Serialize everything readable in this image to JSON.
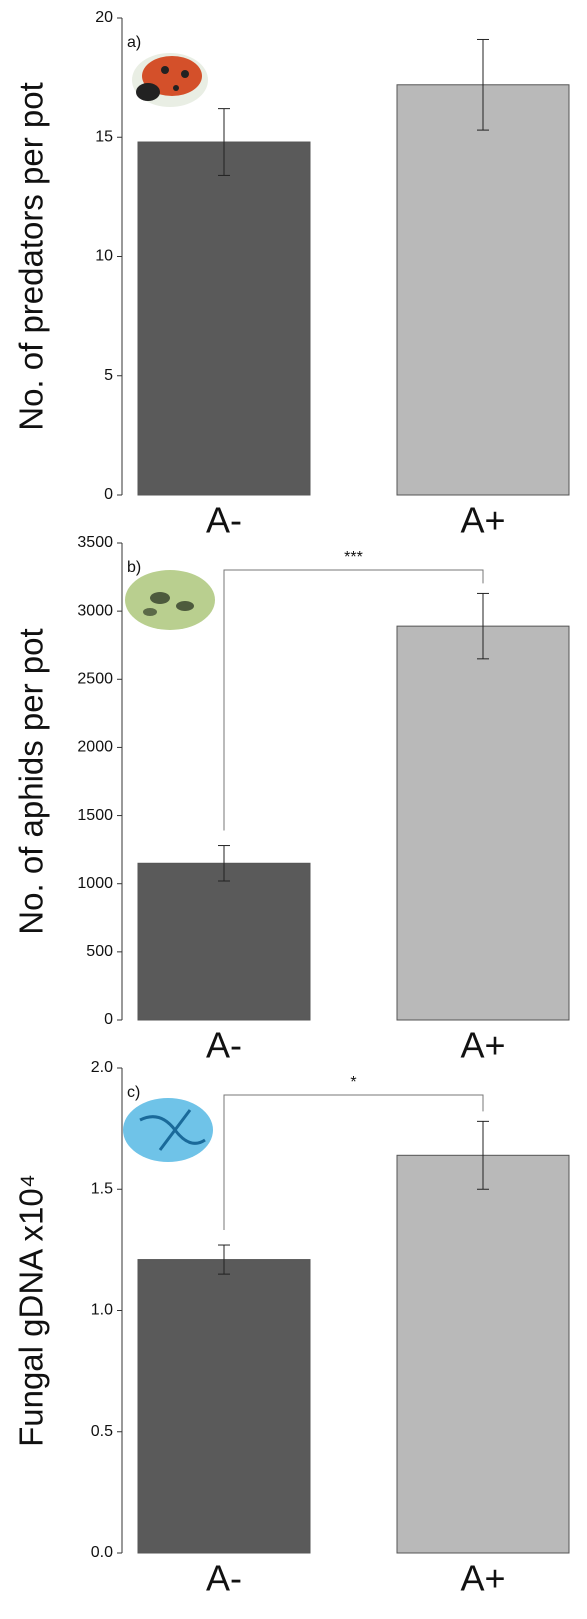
{
  "chart_data": [
    {
      "type": "bar",
      "panel_label": "a)",
      "y_label": "No. of predators per pot",
      "categories": [
        "A-",
        "A+"
      ],
      "values": [
        14.8,
        17.2
      ],
      "errors": [
        1.4,
        1.9
      ],
      "colors": [
        "#5a5a5a",
        "#b9b9b9"
      ],
      "ylim": [
        0,
        20
      ],
      "yticks": [
        0,
        5,
        10,
        15,
        20
      ]
    },
    {
      "type": "bar",
      "panel_label": "b)",
      "y_label": "No. of aphids per pot",
      "categories": [
        "A-",
        "A+"
      ],
      "values": [
        1150,
        2890
      ],
      "errors": [
        130,
        240
      ],
      "colors": [
        "#5a5a5a",
        "#b9b9b9"
      ],
      "ylim": [
        0,
        3500
      ],
      "yticks": [
        0,
        500,
        1000,
        1500,
        2000,
        2500,
        3000,
        3500
      ],
      "significance": "***"
    },
    {
      "type": "bar",
      "panel_label": "c)",
      "y_label": "Fungal gDNA x10⁴",
      "categories": [
        "A-",
        "A+"
      ],
      "values": [
        1.21,
        1.64
      ],
      "errors": [
        0.06,
        0.14
      ],
      "colors": [
        "#5a5a5a",
        "#b9b9b9"
      ],
      "ylim": [
        0,
        2
      ],
      "yticks": [
        {
          "value": 0,
          "label": "0.0"
        },
        {
          "value": 0.5,
          "label": "0.5"
        },
        {
          "value": 1,
          "label": "1.0"
        },
        {
          "value": 1.5,
          "label": "1.5"
        },
        {
          "value": 2,
          "label": "2.0"
        }
      ],
      "significance": "*"
    }
  ]
}
